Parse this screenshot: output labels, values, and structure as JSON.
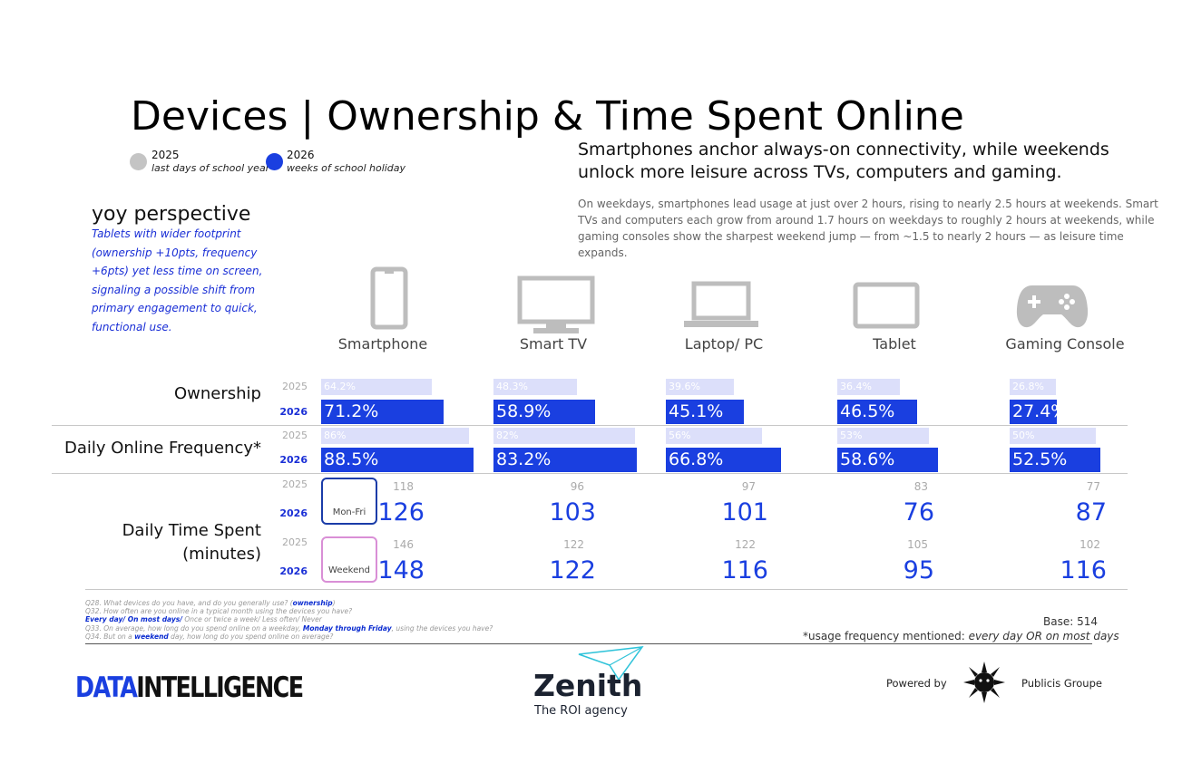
{
  "title": "Devices | Ownership & Time Spent Online",
  "legend": {
    "y2025": {
      "year": "2025",
      "desc": "last days of school year",
      "color": "#c4c4c4"
    },
    "y2026": {
      "year": "2026",
      "desc": "weeks of school holiday",
      "color": "#1a3fe0"
    }
  },
  "headline": "Smartphones anchor always-on connectivity, while weekends unlock more leisure across TVs, computers and gaming.",
  "summary": "On weekdays, smartphones lead usage at just over 2 hours, rising to nearly 2.5 hours at weekends. Smart TVs and computers each grow from around 1.7 hours on weekdays to roughly 2 hours at weekends, while gaming consoles show the sharpest weekend jump — from ~1.5 to nearly 2 hours — as leisure time expands.",
  "yoy": {
    "title": "yoy perspective",
    "text": "Tablets with wider footprint (ownership +10pts, frequency +6pts) yet less time on screen, signaling a possible shift from primary engagement to quick, functional use."
  },
  "row_labels": {
    "ownership": "Ownership",
    "frequency": "Daily Online Frequency*",
    "time_1": "Daily Time Spent",
    "time_2": "(minutes)"
  },
  "year_labels": {
    "y2025": "2025",
    "y2026": "2026"
  },
  "boxes": {
    "weekday": "Mon-Fri",
    "weekend": "Weekend"
  },
  "colors": {
    "bar2025": "#dcdffa",
    "bar2026": "#1a3fe0",
    "weekday_box": "#1a3ca8",
    "weekend_box": "#d98fd6"
  },
  "chart_data": {
    "type": "bar",
    "categories": [
      "Smartphone",
      "Smart TV",
      "Laptop/ PC",
      "Tablet",
      "Gaming Console"
    ],
    "icons": [
      "smartphone-icon",
      "smart-tv-icon",
      "laptop-icon",
      "tablet-icon",
      "gaming-console-icon"
    ],
    "ownership": {
      "y2025": {
        "values": [
          64.2,
          48.3,
          39.6,
          36.4,
          26.8
        ],
        "labels": [
          "64.2%",
          "48.3%",
          "39.6%",
          "36.4%",
          "26.8%"
        ]
      },
      "y2026": {
        "values": [
          71.2,
          58.9,
          45.1,
          46.5,
          27.4
        ],
        "labels": [
          "71.2%",
          "58.9%",
          "45.1%",
          "46.5%",
          "27.4%"
        ]
      }
    },
    "frequency": {
      "y2025": {
        "values": [
          86,
          82,
          56,
          53,
          50
        ],
        "labels": [
          "86%",
          "82%",
          "56%",
          "53%",
          "50%"
        ]
      },
      "y2026": {
        "values": [
          88.5,
          83.2,
          66.8,
          58.6,
          52.5
        ],
        "labels": [
          "88.5%",
          "83.2%",
          "66.8%",
          "58.6%",
          "52.5%"
        ]
      }
    },
    "time_weekday": {
      "y2025": [
        "118",
        "96",
        "97",
        "83",
        "77"
      ],
      "y2026": [
        "126",
        "103",
        "101",
        "76",
        "87"
      ]
    },
    "time_weekend": {
      "y2025": [
        "146",
        "122",
        "122",
        "105",
        "102"
      ],
      "y2026": [
        "148",
        "122",
        "116",
        "95",
        "116"
      ]
    }
  },
  "footnotes": {
    "q28": "Q28. What devices do you have, and do you generally use? (",
    "q28_b": "ownership",
    "q28_end": ")",
    "q32": "Q32. How often are you online in a typical month using the devices you have?",
    "q32_b": "Every day/ On most days/",
    "q32_end": " Once or twice a week/ Less often/ Never",
    "q33": "Q33. On average, how long do you spend online on a weekday, ",
    "q33_b": "Monday through Friday",
    "q33_end": ", using the devices you have?",
    "q34": "Q34. But on a ",
    "q34_b": "weekend",
    "q34_end": " day, how long do you spend online on average?"
  },
  "base": "Base: 514",
  "note_prefix": "*usage frequency mentioned: ",
  "note_italic": "every day OR on most days",
  "footer": {
    "di_data": "DATA",
    "di_intel": "INTELLIGENCE",
    "zenith": "Zenith",
    "tagline": "The ROI agency",
    "powered": "Powered by",
    "publicis": "Publicis Groupe"
  }
}
